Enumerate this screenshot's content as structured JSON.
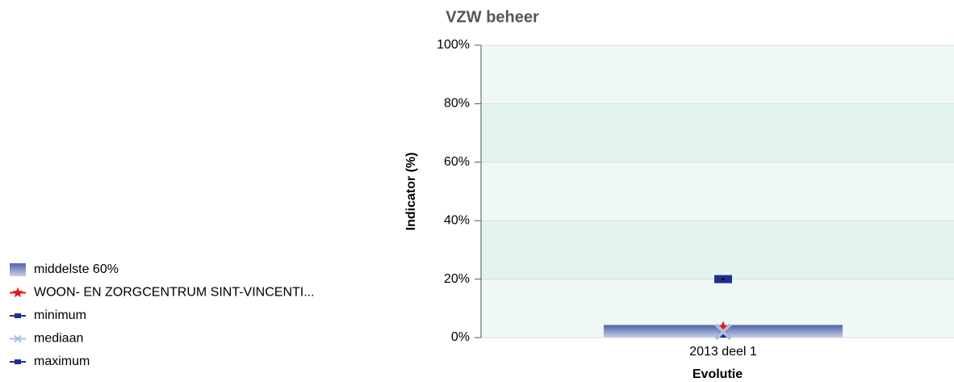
{
  "chart_data": {
    "type": "bar",
    "title": "VZW beheer",
    "y_label": "Indicator (%)",
    "x_label": "Evolutie",
    "categories": [
      "2013 deel 1"
    ],
    "ylim": [
      0,
      100
    ],
    "yticks": [
      {
        "value": 0,
        "label": "0%"
      },
      {
        "value": 20,
        "label": "20%"
      },
      {
        "value": 40,
        "label": "40%"
      },
      {
        "value": 60,
        "label": "60%"
      },
      {
        "value": 80,
        "label": "80%"
      },
      {
        "value": 100,
        "label": "100%"
      }
    ],
    "grid": true,
    "legend": "left",
    "series": [
      {
        "name": "middelste 60%",
        "marker": "bar",
        "color": "#5a6fb0",
        "values": [
          4.3
        ]
      },
      {
        "name": "WOON- EN ZORGCENTRUM SINT-VINCENTI...",
        "marker": "star",
        "color": "#e8141c",
        "values": [
          3.5
        ]
      },
      {
        "name": "minimum",
        "marker": "triangle",
        "color": "#1f2f8f",
        "values": [
          0
        ]
      },
      {
        "name": "mediaan",
        "marker": "x",
        "color": "#a9bde0",
        "values": [
          2
        ]
      },
      {
        "name": "maximum",
        "marker": "square",
        "color": "#1f2f8f",
        "values": [
          20
        ]
      }
    ]
  }
}
